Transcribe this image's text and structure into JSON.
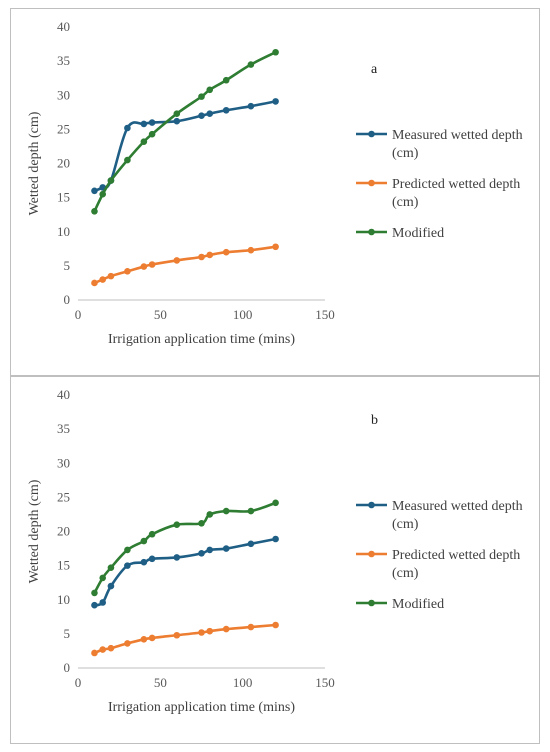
{
  "colors": {
    "measured": "#1f5f86",
    "predicted": "#ed7d31",
    "modified": "#2e7d32"
  },
  "chart_data": [
    {
      "type": "line",
      "panel_label": "a",
      "xlabel": "Irrigation application time (mins)",
      "ylabel": "Wetted depth (cm)",
      "xlim": [
        0,
        150
      ],
      "ylim": [
        0,
        40
      ],
      "xticks": [
        0,
        50,
        100,
        150
      ],
      "yticks": [
        0,
        5,
        10,
        15,
        20,
        25,
        30,
        35,
        40
      ],
      "legend_position": "right",
      "series": [
        {
          "name": "Measured wetted depth (cm)",
          "color": "#1f5f86",
          "x": [
            10,
            15,
            20,
            30,
            40,
            45,
            60,
            75,
            80,
            90,
            105,
            120
          ],
          "y": [
            16,
            16.5,
            17.5,
            25.2,
            25.8,
            26,
            26.2,
            27,
            27.3,
            27.8,
            28.4,
            29.1
          ]
        },
        {
          "name": "Predicted wetted depth (cm)",
          "color": "#ed7d31",
          "x": [
            10,
            15,
            20,
            30,
            40,
            45,
            60,
            75,
            80,
            90,
            105,
            120
          ],
          "y": [
            2.5,
            3.0,
            3.5,
            4.2,
            4.9,
            5.2,
            5.8,
            6.3,
            6.6,
            7.0,
            7.3,
            7.8
          ]
        },
        {
          "name": "Modified",
          "color": "#2e7d32",
          "x": [
            10,
            15,
            20,
            30,
            40,
            45,
            60,
            75,
            80,
            90,
            105,
            120
          ],
          "y": [
            13,
            15.5,
            17.5,
            20.5,
            23.2,
            24.3,
            27.3,
            29.8,
            30.8,
            32.2,
            34.5,
            36.3
          ]
        }
      ]
    },
    {
      "type": "line",
      "panel_label": "b",
      "xlabel": "Irrigation application time (mins)",
      "ylabel": "Wetted depth (cm)",
      "xlim": [
        0,
        150
      ],
      "ylim": [
        0,
        40
      ],
      "xticks": [
        0,
        50,
        100,
        150
      ],
      "yticks": [
        0,
        5,
        10,
        15,
        20,
        25,
        30,
        35,
        40
      ],
      "legend_position": "right",
      "series": [
        {
          "name": "Measured wetted depth (cm)",
          "color": "#1f5f86",
          "x": [
            10,
            15,
            20,
            30,
            40,
            45,
            60,
            75,
            80,
            90,
            105,
            120
          ],
          "y": [
            9.2,
            9.6,
            12,
            15,
            15.5,
            16,
            16.2,
            16.8,
            17.3,
            17.5,
            18.2,
            18.9
          ]
        },
        {
          "name": "Predicted wetted depth (cm)",
          "color": "#ed7d31",
          "x": [
            10,
            15,
            20,
            30,
            40,
            45,
            60,
            75,
            80,
            90,
            105,
            120
          ],
          "y": [
            2.2,
            2.7,
            2.9,
            3.6,
            4.2,
            4.4,
            4.8,
            5.2,
            5.4,
            5.7,
            6.0,
            6.3
          ]
        },
        {
          "name": "Modified",
          "color": "#2e7d32",
          "x": [
            10,
            15,
            20,
            30,
            40,
            45,
            60,
            75,
            80,
            90,
            105,
            120
          ],
          "y": [
            11,
            13.2,
            14.7,
            17.3,
            18.6,
            19.6,
            21,
            21.2,
            22.5,
            23,
            23,
            24.2
          ]
        }
      ]
    }
  ]
}
